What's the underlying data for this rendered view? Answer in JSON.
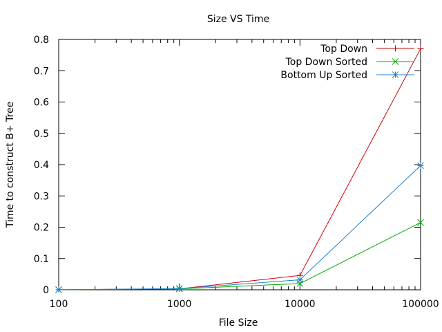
{
  "chart_data": {
    "type": "line",
    "title": "Size VS Time",
    "xlabel": "File Size",
    "ylabel": "Time to construct B+ Tree",
    "x_scale": "log",
    "xlim": [
      100,
      100000
    ],
    "ylim": [
      0,
      0.8
    ],
    "x_ticks": [
      100,
      1000,
      10000,
      100000
    ],
    "x_tick_labels": [
      "100",
      "1000",
      "10000",
      "100000"
    ],
    "y_ticks": [
      0,
      0.1,
      0.2,
      0.3,
      0.4,
      0.5,
      0.6,
      0.7,
      0.8
    ],
    "y_tick_labels": [
      "0",
      "0.1",
      "0.2",
      "0.3",
      "0.4",
      "0.5",
      "0.6",
      "0.7",
      "0.8"
    ],
    "grid": false,
    "legend_position": "top-right",
    "x": [
      100,
      1000,
      10000,
      100000
    ],
    "series": [
      {
        "name": "Top Down",
        "values": [
          0.0002,
          0.003,
          0.046,
          0.77
        ],
        "color": "#cc0000",
        "marker": "plus"
      },
      {
        "name": "Top Down Sorted",
        "values": [
          0.0002,
          0.003,
          0.02,
          0.215
        ],
        "color": "#00aa00",
        "marker": "cross"
      },
      {
        "name": "Bottom Up Sorted",
        "values": [
          0.0002,
          0.004,
          0.032,
          0.397
        ],
        "color": "#1f7fd0",
        "marker": "star"
      }
    ]
  }
}
